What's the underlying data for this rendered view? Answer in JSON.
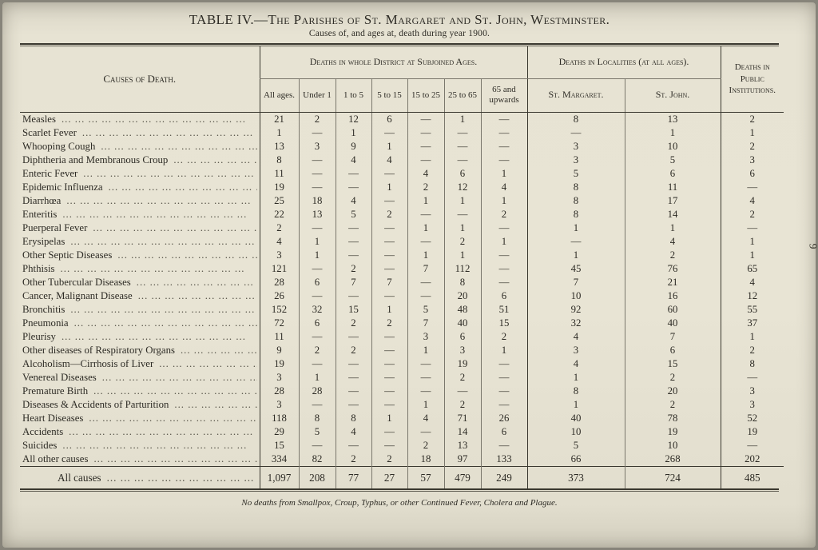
{
  "page_number": "9",
  "title": {
    "prefix": "TABLE IV.—",
    "main": "The Parishes of St. Margaret and St. John, Westminster."
  },
  "subtitle": "Causes of, and ages at, death during year 1900.",
  "footnote": "No deaths from Smallpox, Croup, Typhus, or other Continued Fever, Cholera and Plague.",
  "table": {
    "leader": "... ... ... ... ... ... ... ... ... ... ... ... ... ...",
    "headers": {
      "causes": "Causes of Death.",
      "district_group": "Deaths in whole District at Subjoined Ages.",
      "localities_group": "Deaths in Localities (at all ages).",
      "institutions": "Deaths in Public Institu­tions.",
      "age_columns": [
        "All ages.",
        "Under 1",
        "1 to 5",
        "5 to 15",
        "15 to 25",
        "25 to 65",
        "65 and upwards"
      ],
      "locality_columns": [
        "St. Margaret.",
        "St. John."
      ]
    },
    "rows": [
      {
        "cause": "Measles",
        "values": [
          "21",
          "2",
          "12",
          "6",
          "—",
          "1",
          "—",
          "8",
          "13",
          "2"
        ]
      },
      {
        "cause": "Scarlet Fever",
        "values": [
          "1",
          "—",
          "1",
          "—",
          "—",
          "—",
          "—",
          "—",
          "1",
          "1"
        ]
      },
      {
        "cause": "Whooping Cough",
        "values": [
          "13",
          "3",
          "9",
          "1",
          "—",
          "—",
          "—",
          "3",
          "10",
          "2"
        ]
      },
      {
        "cause": "Diphtheria and Membranous Croup",
        "values": [
          "8",
          "—",
          "4",
          "4",
          "—",
          "—",
          "—",
          "3",
          "5",
          "3"
        ]
      },
      {
        "cause": "Enteric Fever",
        "values": [
          "11",
          "—",
          "—",
          "—",
          "4",
          "6",
          "1",
          "5",
          "6",
          "6"
        ]
      },
      {
        "cause": "Epidemic Influenza",
        "values": [
          "19",
          "—",
          "—",
          "1",
          "2",
          "12",
          "4",
          "8",
          "11",
          "—"
        ]
      },
      {
        "cause": "Diarrhœa",
        "values": [
          "25",
          "18",
          "4",
          "—",
          "1",
          "1",
          "1",
          "8",
          "17",
          "4"
        ]
      },
      {
        "cause": "Enteritis",
        "values": [
          "22",
          "13",
          "5",
          "2",
          "—",
          "—",
          "2",
          "8",
          "14",
          "2"
        ]
      },
      {
        "cause": "Puerperal Fever",
        "values": [
          "2",
          "—",
          "—",
          "—",
          "1",
          "1",
          "—",
          "1",
          "1",
          "—"
        ]
      },
      {
        "cause": "Erysipelas",
        "values": [
          "4",
          "1",
          "—",
          "—",
          "—",
          "2",
          "1",
          "—",
          "4",
          "1"
        ]
      },
      {
        "cause": "Other Septic Diseases",
        "values": [
          "3",
          "1",
          "—",
          "—",
          "1",
          "1",
          "—",
          "1",
          "2",
          "1"
        ]
      },
      {
        "cause": "Phthisis",
        "values": [
          "121",
          "—",
          "2",
          "—",
          "7",
          "112",
          "—",
          "45",
          "76",
          "65"
        ]
      },
      {
        "cause": "Other Tubercular Diseases",
        "values": [
          "28",
          "6",
          "7",
          "7",
          "—",
          "8",
          "—",
          "7",
          "21",
          "4"
        ]
      },
      {
        "cause": "Cancer, Malignant Disease",
        "values": [
          "26",
          "—",
          "—",
          "—",
          "—",
          "20",
          "6",
          "10",
          "16",
          "12"
        ]
      },
      {
        "cause": "Bronchitis",
        "values": [
          "152",
          "32",
          "15",
          "1",
          "5",
          "48",
          "51",
          "92",
          "60",
          "55"
        ]
      },
      {
        "cause": "Pneumonia",
        "values": [
          "72",
          "6",
          "2",
          "2",
          "7",
          "40",
          "15",
          "32",
          "40",
          "37"
        ]
      },
      {
        "cause": "Pleurisy",
        "values": [
          "11",
          "—",
          "—",
          "—",
          "3",
          "6",
          "2",
          "4",
          "7",
          "1"
        ]
      },
      {
        "cause": "Other diseases of Respiratory Organs",
        "values": [
          "9",
          "2",
          "2",
          "—",
          "1",
          "3",
          "1",
          "3",
          "6",
          "2"
        ]
      },
      {
        "cause": "Alcoholism—Cirrhosis of Liver",
        "values": [
          "19",
          "—",
          "—",
          "—",
          "—",
          "19",
          "—",
          "4",
          "15",
          "8"
        ]
      },
      {
        "cause": "Venereal Diseases",
        "values": [
          "3",
          "1",
          "—",
          "—",
          "—",
          "2",
          "—",
          "1",
          "2",
          "—"
        ]
      },
      {
        "cause": "Premature Birth",
        "values": [
          "28",
          "28",
          "—",
          "—",
          "—",
          "—",
          "—",
          "8",
          "20",
          "3"
        ]
      },
      {
        "cause": "Diseases & Accidents of Parturition",
        "values": [
          "3",
          "—",
          "—",
          "—",
          "1",
          "2",
          "—",
          "1",
          "2",
          "3"
        ]
      },
      {
        "cause": "Heart Diseases",
        "values": [
          "118",
          "8",
          "8",
          "1",
          "4",
          "71",
          "26",
          "40",
          "78",
          "52"
        ]
      },
      {
        "cause": "Accidents",
        "values": [
          "29",
          "5",
          "4",
          "—",
          "—",
          "14",
          "6",
          "10",
          "19",
          "19"
        ]
      },
      {
        "cause": "Suicides",
        "values": [
          "15",
          "—",
          "—",
          "—",
          "2",
          "13",
          "—",
          "5",
          "10",
          "—"
        ]
      },
      {
        "cause": "All other causes",
        "values": [
          "334",
          "82",
          "2",
          "2",
          "18",
          "97",
          "133",
          "66",
          "268",
          "202"
        ]
      }
    ],
    "total": {
      "cause": "All causes",
      "values": [
        "1,097",
        "208",
        "77",
        "27",
        "57",
        "479",
        "249",
        "373",
        "724",
        "485"
      ]
    }
  }
}
